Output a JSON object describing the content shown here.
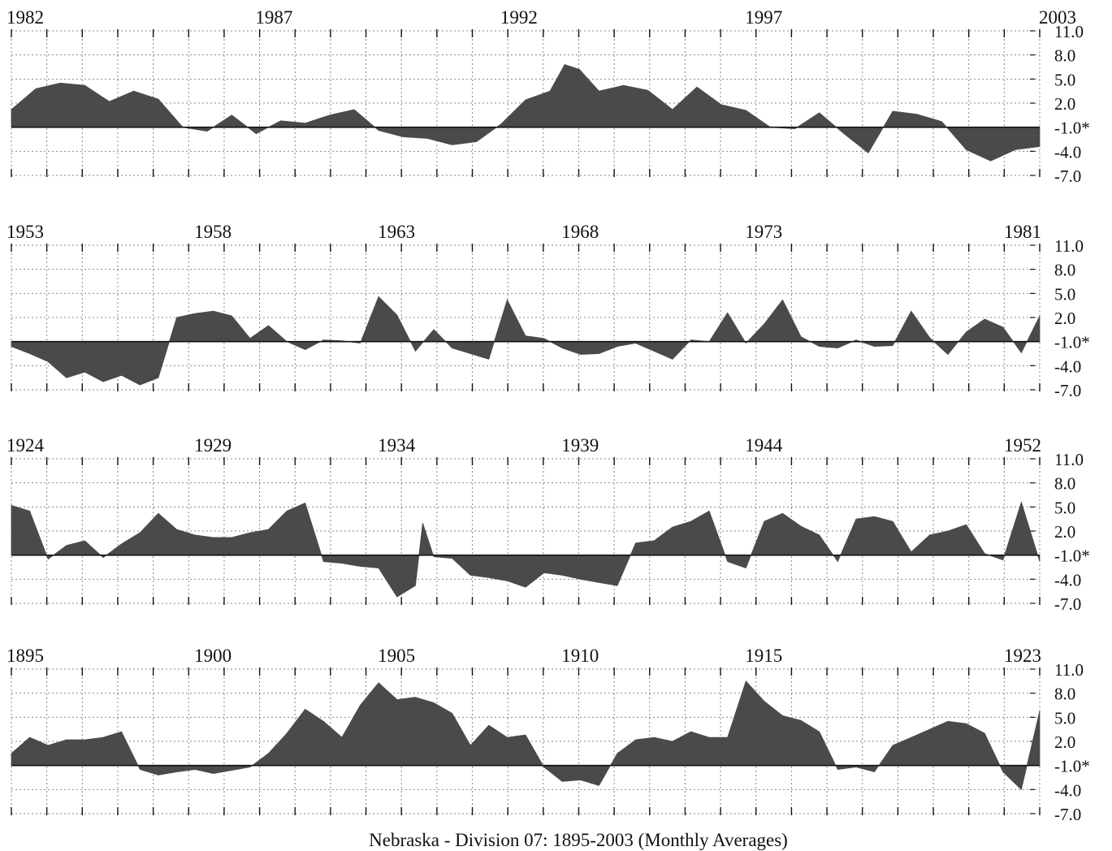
{
  "title": "Nebraska - Division 07: 1895-2003 (Monthly Averages)",
  "colors": {
    "fill": "#4a4a4a",
    "grid": "#888888",
    "baseline": "#111111",
    "text": "#111111"
  },
  "chart_data": {
    "type": "area",
    "title": "Nebraska - Division 07: 1895-2003 (Monthly Averages)",
    "grid": true,
    "ylim": [
      -7,
      11
    ],
    "baseline": -1.0,
    "y_ticks": [
      "11.0",
      "8.0",
      "5.0",
      "2.0",
      "-1.0*",
      "-4.0",
      "-7.0"
    ],
    "panels": [
      {
        "start_year": 1982,
        "end_year": 2003,
        "year_labels": [
          "1982",
          "1987",
          "1992",
          "1997",
          "2003"
        ],
        "label_years": [
          1982,
          1987,
          1992,
          1997,
          2003
        ],
        "x": [
          1982.0,
          1982.5,
          1983.0,
          1983.5,
          1984.0,
          1984.5,
          1985.0,
          1985.5,
          1986.0,
          1986.5,
          1987.0,
          1987.5,
          1988.0,
          1988.5,
          1989.0,
          1989.5,
          1990.0,
          1990.5,
          1991.0,
          1991.5,
          1992.0,
          1992.5,
          1993.0,
          1993.3,
          1993.6,
          1994.0,
          1994.5,
          1995.0,
          1995.5,
          1996.0,
          1996.5,
          1997.0,
          1997.5,
          1998.0,
          1998.5,
          1999.0,
          1999.5,
          2000.0,
          2000.5,
          2001.0,
          2001.5,
          2002.0,
          2002.5,
          2003.0
        ],
        "y": [
          1.2,
          3.8,
          4.5,
          4.2,
          2.2,
          3.5,
          2.5,
          -1.0,
          -1.5,
          0.5,
          -1.8,
          -0.2,
          -0.5,
          0.5,
          1.2,
          -1.4,
          -2.2,
          -2.4,
          -3.2,
          -2.8,
          -0.6,
          2.4,
          3.5,
          6.8,
          6.2,
          3.5,
          4.2,
          3.6,
          1.2,
          4.0,
          1.8,
          1.1,
          -1.0,
          -1.2,
          0.8,
          -1.8,
          -4.2,
          1.0,
          0.6,
          -0.3,
          -3.8,
          -5.2,
          -3.8,
          -3.4
        ]
      },
      {
        "start_year": 1953,
        "end_year": 1981,
        "year_labels": [
          "1953",
          "1958",
          "1963",
          "1968",
          "1973",
          "1981"
        ],
        "label_years": [
          1953,
          1958,
          1963,
          1968,
          1973,
          1981
        ],
        "x": [
          1953.0,
          1953.5,
          1954.0,
          1954.5,
          1955.0,
          1955.5,
          1956.0,
          1956.5,
          1957.0,
          1957.5,
          1958.0,
          1958.5,
          1959.0,
          1959.5,
          1960.0,
          1960.5,
          1961.0,
          1961.5,
          1962.0,
          1962.5,
          1963.0,
          1963.5,
          1964.0,
          1964.5,
          1965.0,
          1965.5,
          1966.0,
          1966.5,
          1967.0,
          1967.5,
          1968.0,
          1968.5,
          1969.0,
          1969.5,
          1970.0,
          1970.5,
          1971.0,
          1971.5,
          1972.0,
          1972.5,
          1973.0,
          1973.5,
          1974.0,
          1974.5,
          1975.0,
          1975.5,
          1976.0,
          1976.5,
          1977.0,
          1977.5,
          1978.0,
          1978.5,
          1979.0,
          1979.5,
          1980.0,
          1980.5,
          1981.0
        ],
        "y": [
          -1.6,
          -2.5,
          -3.5,
          -5.5,
          -4.8,
          -6.0,
          -5.2,
          -6.4,
          -5.5,
          2.0,
          2.5,
          2.8,
          2.2,
          -0.6,
          1.0,
          -1.0,
          -2.0,
          -0.8,
          -0.9,
          -1.2,
          4.6,
          2.3,
          -2.2,
          0.5,
          -1.8,
          -2.5,
          -3.2,
          4.2,
          -0.3,
          -0.6,
          -1.8,
          -2.6,
          -2.5,
          -1.6,
          -1.2,
          -2.2,
          -3.2,
          -0.8,
          -1.0,
          2.6,
          -1.2,
          1.2,
          4.2,
          -0.4,
          -1.6,
          -1.8,
          -0.8,
          -1.6,
          -1.5,
          2.8,
          -0.5,
          -2.6,
          0.2,
          1.8,
          0.8,
          -2.4,
          2.2
        ]
      },
      {
        "start_year": 1924,
        "end_year": 1952,
        "year_labels": [
          "1924",
          "1929",
          "1934",
          "1939",
          "1944",
          "1952"
        ],
        "label_years": [
          1924,
          1929,
          1934,
          1939,
          1944,
          1952
        ],
        "x": [
          1924.0,
          1924.5,
          1925.0,
          1925.5,
          1926.0,
          1926.5,
          1927.0,
          1927.5,
          1928.0,
          1928.5,
          1929.0,
          1929.5,
          1930.0,
          1930.5,
          1931.0,
          1931.5,
          1932.0,
          1932.5,
          1933.0,
          1933.5,
          1934.0,
          1934.5,
          1935.0,
          1935.2,
          1935.5,
          1936.0,
          1936.5,
          1937.0,
          1937.5,
          1938.0,
          1938.5,
          1939.0,
          1939.5,
          1940.0,
          1940.5,
          1941.0,
          1941.5,
          1942.0,
          1942.5,
          1943.0,
          1943.5,
          1944.0,
          1944.5,
          1945.0,
          1945.5,
          1946.0,
          1946.5,
          1947.0,
          1947.5,
          1948.0,
          1948.5,
          1949.0,
          1949.5,
          1950.0,
          1950.5,
          1951.0,
          1951.5,
          1952.0
        ],
        "y": [
          5.2,
          4.5,
          -1.5,
          0.2,
          0.8,
          -1.3,
          0.4,
          1.8,
          4.2,
          2.2,
          1.5,
          1.2,
          1.2,
          1.8,
          2.2,
          4.5,
          5.5,
          -1.8,
          -2.0,
          -2.4,
          -2.6,
          -6.2,
          -4.8,
          3.0,
          -1.2,
          -1.4,
          -3.5,
          -3.8,
          -4.2,
          -5.0,
          -3.2,
          -3.5,
          -4.0,
          -4.4,
          -4.8,
          0.5,
          0.8,
          2.5,
          3.2,
          4.5,
          -1.8,
          -2.6,
          3.2,
          4.2,
          2.6,
          1.5,
          -1.8,
          3.5,
          3.8,
          3.2,
          -0.6,
          1.5,
          2.0,
          2.8,
          -0.8,
          -1.6,
          5.6,
          -1.8
        ]
      },
      {
        "start_year": 1895,
        "end_year": 1923,
        "year_labels": [
          "1895",
          "1900",
          "1905",
          "1910",
          "1915",
          "1923"
        ],
        "label_years": [
          1895,
          1900,
          1905,
          1910,
          1915,
          1923
        ],
        "x": [
          1895.0,
          1895.5,
          1896.0,
          1896.5,
          1897.0,
          1897.5,
          1898.0,
          1898.5,
          1899.0,
          1899.5,
          1900.0,
          1900.5,
          1901.0,
          1901.5,
          1902.0,
          1902.5,
          1903.0,
          1903.5,
          1904.0,
          1904.5,
          1905.0,
          1905.5,
          1906.0,
          1906.5,
          1907.0,
          1907.5,
          1908.0,
          1908.5,
          1909.0,
          1909.5,
          1910.0,
          1910.5,
          1911.0,
          1911.5,
          1912.0,
          1912.5,
          1913.0,
          1913.5,
          1914.0,
          1914.5,
          1915.0,
          1915.5,
          1916.0,
          1916.5,
          1917.0,
          1917.5,
          1918.0,
          1918.5,
          1919.0,
          1919.5,
          1920.0,
          1920.5,
          1921.0,
          1921.5,
          1922.0,
          1922.5,
          1923.0
        ],
        "y": [
          0.5,
          2.5,
          1.5,
          2.2,
          2.2,
          2.5,
          3.2,
          -1.5,
          -2.2,
          -1.8,
          -1.5,
          -2.0,
          -1.6,
          -1.2,
          0.5,
          3.0,
          6.0,
          4.5,
          2.5,
          6.5,
          9.3,
          7.2,
          7.5,
          6.8,
          5.5,
          1.5,
          4.0,
          2.5,
          2.8,
          -1.2,
          -3.0,
          -2.8,
          -3.5,
          0.5,
          2.2,
          2.5,
          2.0,
          3.2,
          2.5,
          2.5,
          9.5,
          7.0,
          5.2,
          4.6,
          3.2,
          -1.5,
          -1.2,
          -1.8,
          1.5,
          2.5,
          3.5,
          4.5,
          4.2,
          3.0,
          -1.8,
          -4.0,
          5.8
        ]
      }
    ]
  }
}
